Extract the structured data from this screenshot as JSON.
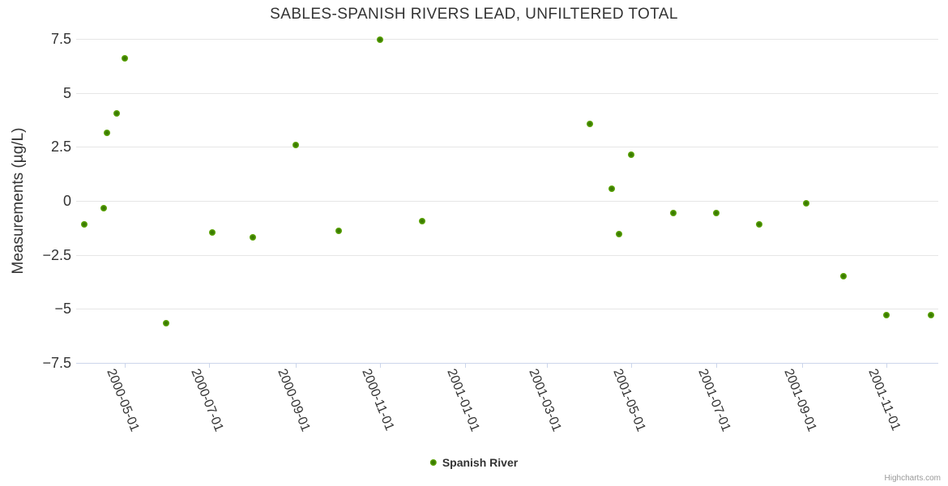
{
  "chart_data": {
    "type": "scatter",
    "title": "SABLES-SPANISH RIVERS LEAD, UNFILTERED TOTAL",
    "xlabel": "",
    "ylabel": "Measurements (µg/L)",
    "x_type": "datetime",
    "xlim": [
      "2000-03-27",
      "2001-12-08"
    ],
    "ylim": [
      -7.5,
      7.5
    ],
    "grid": "horizontal-only",
    "legend_position": "bottom-center",
    "x_tick_labels": [
      "2000-05-01",
      "2000-07-01",
      "2000-09-01",
      "2000-11-01",
      "2001-01-01",
      "2001-03-01",
      "2001-05-01",
      "2001-07-01",
      "2001-09-01",
      "2001-11-01"
    ],
    "y_ticks": [
      7.5,
      5,
      2.5,
      0,
      -2.5,
      -5,
      -7.5
    ],
    "y_tick_labels": [
      "7.5",
      "5",
      "2.5",
      "0",
      "−2.5",
      "−5",
      "−7.5"
    ],
    "gridline_color": "#e6e6e6",
    "axis_line_color": "#ccd6eb",
    "series": [
      {
        "name": "Spanish River",
        "color": "#5aa300",
        "marker_edge_color": "#6ab90f",
        "marker_core_color": "#3a7a00",
        "points": [
          [
            "2000-04-02",
            -1.1
          ],
          [
            "2000-04-16",
            -0.35
          ],
          [
            "2000-04-18",
            3.15
          ],
          [
            "2000-04-25",
            4.05
          ],
          [
            "2000-05-01",
            6.6
          ],
          [
            "2000-05-31",
            -5.65
          ],
          [
            "2000-07-03",
            -1.45
          ],
          [
            "2000-08-01",
            -1.7
          ],
          [
            "2000-09-01",
            2.6
          ],
          [
            "2000-10-02",
            -1.4
          ],
          [
            "2000-11-01",
            7.45
          ],
          [
            "2000-12-01",
            -0.95
          ],
          [
            "2001-04-01",
            3.55
          ],
          [
            "2001-04-17",
            0.55
          ],
          [
            "2001-04-22",
            -1.55
          ],
          [
            "2001-05-01",
            2.15
          ],
          [
            "2001-05-31",
            -0.55
          ],
          [
            "2001-07-01",
            -0.55
          ],
          [
            "2001-08-01",
            -1.1
          ],
          [
            "2001-09-04",
            -0.1
          ],
          [
            "2001-10-01",
            -3.5
          ],
          [
            "2001-11-01",
            -5.3
          ],
          [
            "2001-12-03",
            -5.3
          ]
        ]
      }
    ]
  },
  "legend": {
    "label": "Spanish River"
  },
  "credits": {
    "text": "Highcharts.com"
  }
}
